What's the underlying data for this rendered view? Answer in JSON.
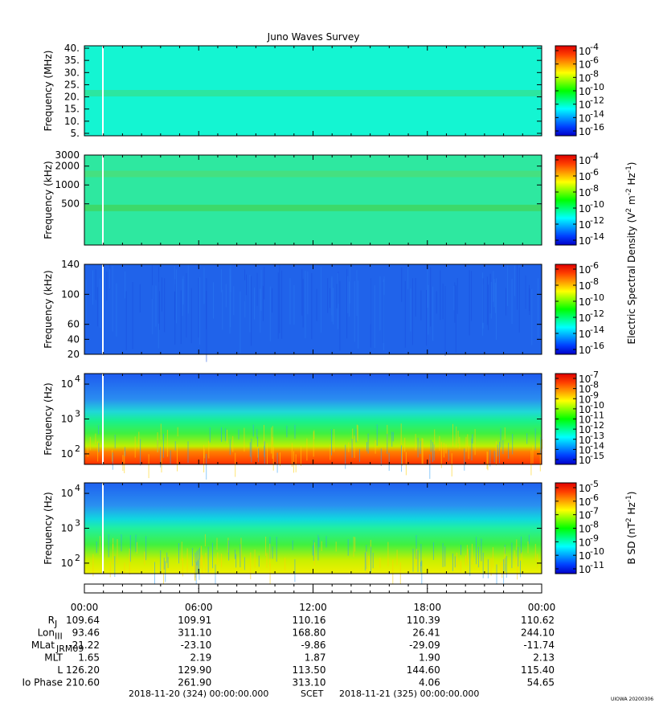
{
  "chart_data": {
    "type": "heatmap",
    "title": "Juno Waves Survey",
    "panels": [
      {
        "ylabel": "Frequency (MHz)",
        "yscale": "linear",
        "ylim": [
          4,
          41
        ],
        "yticks": [
          {
            "v": 5,
            "label": "5."
          },
          {
            "v": 10,
            "label": "10."
          },
          {
            "v": 15,
            "label": "15."
          },
          {
            "v": 20,
            "label": "20."
          },
          {
            "v": 25,
            "label": "25."
          },
          {
            "v": 30,
            "label": "30."
          },
          {
            "v": 35,
            "label": "35."
          },
          {
            "v": 40,
            "label": "40."
          }
        ],
        "background": "#14f5d2",
        "bands": [
          {
            "v": 21.5,
            "color": "#2ce6a0"
          }
        ],
        "colorbar": {
          "exponents": [
            -16,
            -14,
            -12,
            -10,
            -8,
            -6,
            -4
          ],
          "base": "10"
        }
      },
      {
        "ylabel": "Frequency (kHz)",
        "yscale": "log",
        "ylim": [
          110,
          3000
        ],
        "yticks": [
          {
            "v": 500,
            "label": "500"
          },
          {
            "v": 1000,
            "label": "1000"
          },
          {
            "v": 2000,
            "label": "2000"
          },
          {
            "v": 3000,
            "label": "3000"
          }
        ],
        "background": "#2ee8a0",
        "bands": [
          {
            "v": 1500,
            "color": "#45e080"
          },
          {
            "v": 430,
            "color": "#3dd96a"
          }
        ],
        "colorbar": {
          "exponents": [
            -14,
            -12,
            -10,
            -8,
            -6,
            -4
          ],
          "base": "10"
        }
      },
      {
        "ylabel": "Frequency (kHz)",
        "yscale": "linear",
        "ylim": [
          20,
          140
        ],
        "yticks": [
          {
            "v": 20,
            "label": "20"
          },
          {
            "v": 40,
            "label": "40"
          },
          {
            "v": 60,
            "label": "60"
          },
          {
            "v": 100,
            "label": "100"
          },
          {
            "v": 140,
            "label": "140"
          }
        ],
        "background": "#2063ea",
        "bands": [],
        "colorbar": {
          "exponents": [
            -16,
            -14,
            -12,
            -10,
            -8,
            -6
          ],
          "base": "10"
        }
      },
      {
        "ylabel": "Frequency (Hz)",
        "yscale": "log",
        "ylim": [
          50,
          20000
        ],
        "yticks": [
          {
            "v": 100,
            "label": "10",
            "exp": "2"
          },
          {
            "v": 1000,
            "label": "10",
            "exp": "3"
          },
          {
            "v": 10000,
            "label": "10",
            "exp": "4"
          }
        ],
        "background": "#2a7ae8",
        "bands": [],
        "colorbar": {
          "exponents": [
            -15,
            -14,
            -13,
            -12,
            -11,
            -10,
            -9,
            -8,
            -7
          ],
          "base": "10"
        }
      },
      {
        "ylabel": "Frequency (Hz)",
        "yscale": "log",
        "ylim": [
          50,
          20000
        ],
        "yticks": [
          {
            "v": 100,
            "label": "10",
            "exp": "2"
          },
          {
            "v": 1000,
            "label": "10",
            "exp": "3"
          },
          {
            "v": 10000,
            "label": "10",
            "exp": "4"
          }
        ],
        "background": "#2a80e8",
        "bands": [],
        "colorbar": {
          "exponents": [
            -11,
            -10,
            -9,
            -8,
            -7,
            -6,
            -5
          ],
          "base": "10"
        }
      }
    ],
    "colorbar_label_e": "Electric Spectral Density (V",
    "colorbar_label_e_sup1": "2",
    "colorbar_label_e_mid": " m",
    "colorbar_label_e_sup2": "-2",
    "colorbar_label_e_mid2": " Hz",
    "colorbar_label_e_sup3": "-1",
    "colorbar_label_e_end": ")",
    "colorbar_label_b": "B SD (nT",
    "colorbar_label_b_sup1": "2",
    "colorbar_label_b_mid": " Hz",
    "colorbar_label_b_sup2": "-1",
    "colorbar_label_b_end": ")",
    "xticks": [
      "00:00",
      "06:00",
      "12:00",
      "18:00",
      "00:00"
    ],
    "ephemeris": [
      {
        "label": "R",
        "sub": "J",
        "values": [
          "109.64",
          "109.91",
          "110.16",
          "110.39",
          "110.62"
        ]
      },
      {
        "label": "Lon",
        "sub": "III",
        "values": [
          "93.46",
          "311.10",
          "168.80",
          "26.41",
          "244.10"
        ]
      },
      {
        "label": "MLat",
        "sub": "JRM09",
        "values": [
          "-21.22",
          "-23.10",
          "-9.86",
          "-29.09",
          "-11.74"
        ]
      },
      {
        "label": "MLT",
        "sub": "",
        "values": [
          "1.65",
          "2.19",
          "1.87",
          "1.90",
          "2.13"
        ]
      },
      {
        "label": "L",
        "sub": "",
        "values": [
          "126.20",
          "129.90",
          "113.50",
          "144.60",
          "115.40"
        ]
      },
      {
        "label": "Io Phase",
        "sub": "",
        "values": [
          "210.60",
          "261.90",
          "313.10",
          "4.06",
          "54.65"
        ]
      }
    ],
    "time_start": "2018-11-20 (324) 00:00:00.000",
    "time_label": "SCET",
    "time_end": "2018-11-21 (325) 00:00:00.000",
    "credit": "UIOWA 20200306",
    "colorscale": [
      "#0000c8",
      "#0040ff",
      "#00a0ff",
      "#00ffff",
      "#00ff80",
      "#00ff00",
      "#80ff00",
      "#ffff00",
      "#ffa000",
      "#ff4000",
      "#e00000"
    ]
  }
}
